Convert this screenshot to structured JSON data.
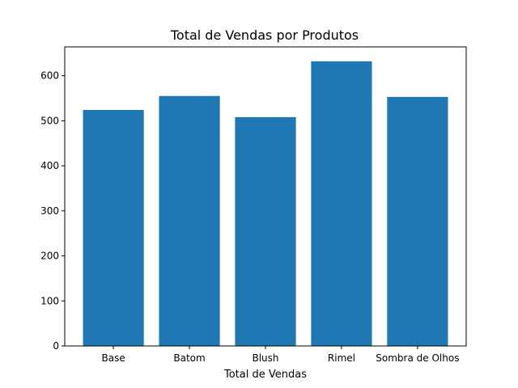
{
  "chart_data": {
    "type": "bar",
    "title": "Total de Vendas por Produtos",
    "xlabel": "Total de Vendas",
    "ylabel": "",
    "categories": [
      "Base",
      "Batom",
      "Blush",
      "Rimel",
      "Sombra de Olhos"
    ],
    "values": [
      524,
      555,
      508,
      632,
      553
    ],
    "ylim": [
      0,
      664
    ],
    "yticks": [
      0,
      100,
      200,
      300,
      400,
      500,
      600
    ],
    "grid": false,
    "colors": {
      "bar": "#1f77b4"
    }
  }
}
